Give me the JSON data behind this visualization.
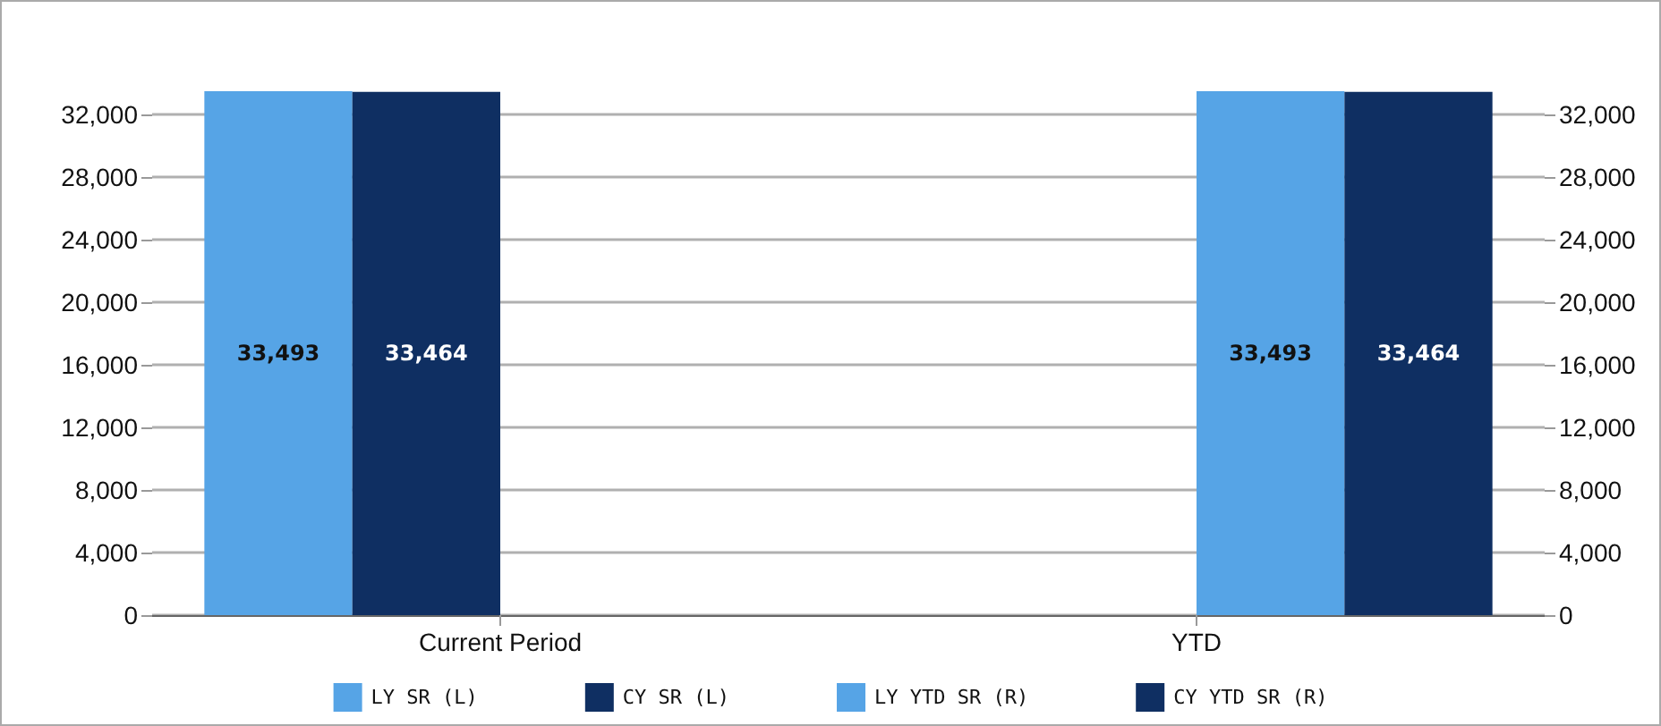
{
  "chart_data": {
    "type": "bar",
    "categories": [
      "Current Period",
      "YTD"
    ],
    "series": [
      {
        "name": "LY SR (L)",
        "color": "#56a4e6",
        "values": [
          33493,
          null
        ],
        "value_labels": [
          "33,493",
          null
        ]
      },
      {
        "name": "CY SR (L)",
        "color": "#0f2f62",
        "values": [
          33464,
          null
        ],
        "value_labels": [
          "33,464",
          null
        ]
      },
      {
        "name": "LY YTD SR (R)",
        "color": "#56a4e6",
        "values": [
          null,
          33493
        ],
        "value_labels": [
          null,
          "33,493"
        ],
        "axis": "y2"
      },
      {
        "name": "CY YTD SR (R)",
        "color": "#0f2f62",
        "values": [
          null,
          33464
        ],
        "value_labels": [
          null,
          "33,464"
        ],
        "axis": "y2"
      }
    ],
    "ylim": [
      0,
      33500
    ],
    "yticks": [
      {
        "value": 0,
        "label": "0"
      },
      {
        "value": 4000,
        "label": "4,000"
      },
      {
        "value": 8000,
        "label": "8,000"
      },
      {
        "value": 12000,
        "label": "12,000"
      },
      {
        "value": 16000,
        "label": "16,000"
      },
      {
        "value": 20000,
        "label": "20,000"
      },
      {
        "value": 24000,
        "label": "24,000"
      },
      {
        "value": 28000,
        "label": "28,000"
      },
      {
        "value": 32000,
        "label": "32,000"
      }
    ],
    "y2lim": [
      0,
      33500
    ],
    "y2ticks": [
      {
        "value": 0,
        "label": "0"
      },
      {
        "value": 4000,
        "label": "4,000"
      },
      {
        "value": 8000,
        "label": "8,000"
      },
      {
        "value": 12000,
        "label": "12,000"
      },
      {
        "value": 16000,
        "label": "16,000"
      },
      {
        "value": 20000,
        "label": "20,000"
      },
      {
        "value": 24000,
        "label": "24,000"
      },
      {
        "value": 28000,
        "label": "28,000"
      },
      {
        "value": 32000,
        "label": "32,000"
      }
    ],
    "grid": "y",
    "legend": "bottom"
  }
}
